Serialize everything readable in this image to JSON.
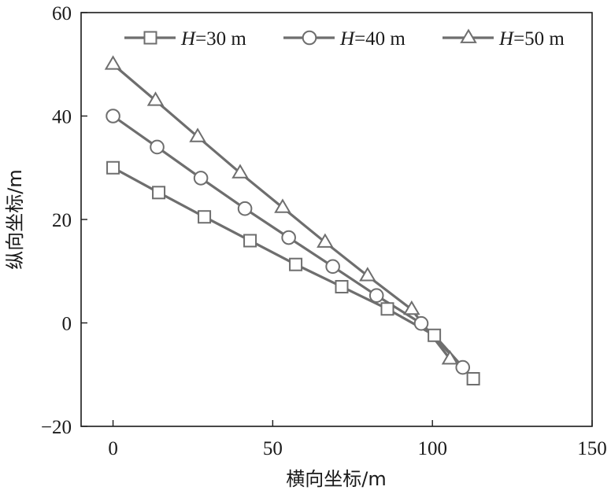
{
  "chart_data": {
    "type": "line",
    "xlabel": "横向坐标/m",
    "ylabel": "纵向坐标/m",
    "xlim": [
      -10,
      150
    ],
    "ylim": [
      -20,
      60
    ],
    "xticks": [
      0,
      50,
      100,
      150
    ],
    "yticks": [
      -20,
      0,
      20,
      40,
      60
    ],
    "xtick_labels": [
      "0",
      "50",
      "100",
      "150"
    ],
    "ytick_labels": [
      "−20",
      "0",
      "20",
      "40",
      "60"
    ],
    "grid": false,
    "legend_position": "top",
    "series": [
      {
        "name_var": "H",
        "name_rest": "=30 m",
        "marker": "square",
        "x": [
          0,
          14.3,
          28.6,
          42.9,
          57.2,
          71.6,
          85.9,
          100.6,
          112.8
        ],
        "y": [
          30,
          25.2,
          20.5,
          15.9,
          11.3,
          7.0,
          2.7,
          -2.4,
          -10.8
        ]
      },
      {
        "name_var": "H",
        "name_rest": "=40 m",
        "marker": "circle",
        "x": [
          0,
          13.8,
          27.5,
          41.3,
          55.0,
          68.8,
          82.5,
          96.5,
          109.5
        ],
        "y": [
          40,
          34.0,
          28.0,
          22.1,
          16.5,
          10.9,
          5.3,
          -0.1,
          -8.6
        ]
      },
      {
        "name_var": "H",
        "name_rest": "=50 m",
        "marker": "triangle",
        "x": [
          0,
          13.3,
          26.5,
          39.8,
          53.1,
          66.4,
          79.7,
          93.5,
          105.5
        ],
        "y": [
          50,
          43.0,
          36.0,
          29.0,
          22.3,
          15.6,
          9.1,
          2.6,
          -7.0
        ]
      }
    ]
  }
}
